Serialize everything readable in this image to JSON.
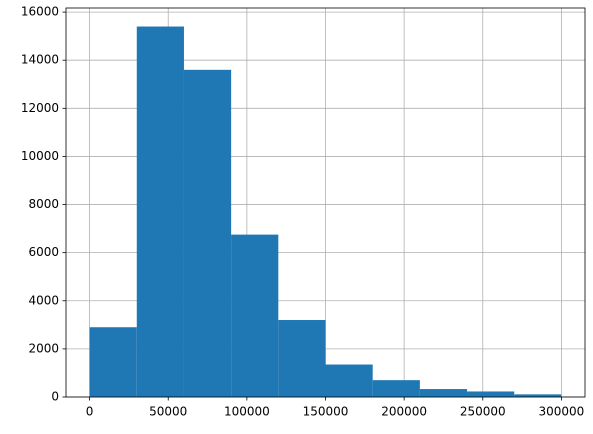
{
  "chart_data": {
    "type": "histogram",
    "bins": [
      0,
      30000,
      60000,
      90000,
      120000,
      150000,
      180000,
      210000,
      240000,
      270000,
      300000
    ],
    "counts": [
      2900,
      15400,
      13600,
      6750,
      3200,
      1350,
      700,
      330,
      230,
      110
    ],
    "color": "#1f77b4",
    "xlim": [
      -15000,
      315000
    ],
    "xticks": [
      0,
      50000,
      100000,
      150000,
      200000,
      250000,
      300000
    ],
    "ylim": [
      0,
      16170
    ],
    "yticks": [
      0,
      2000,
      4000,
      6000,
      8000,
      10000,
      12000,
      14000,
      16000
    ],
    "grid": true
  }
}
